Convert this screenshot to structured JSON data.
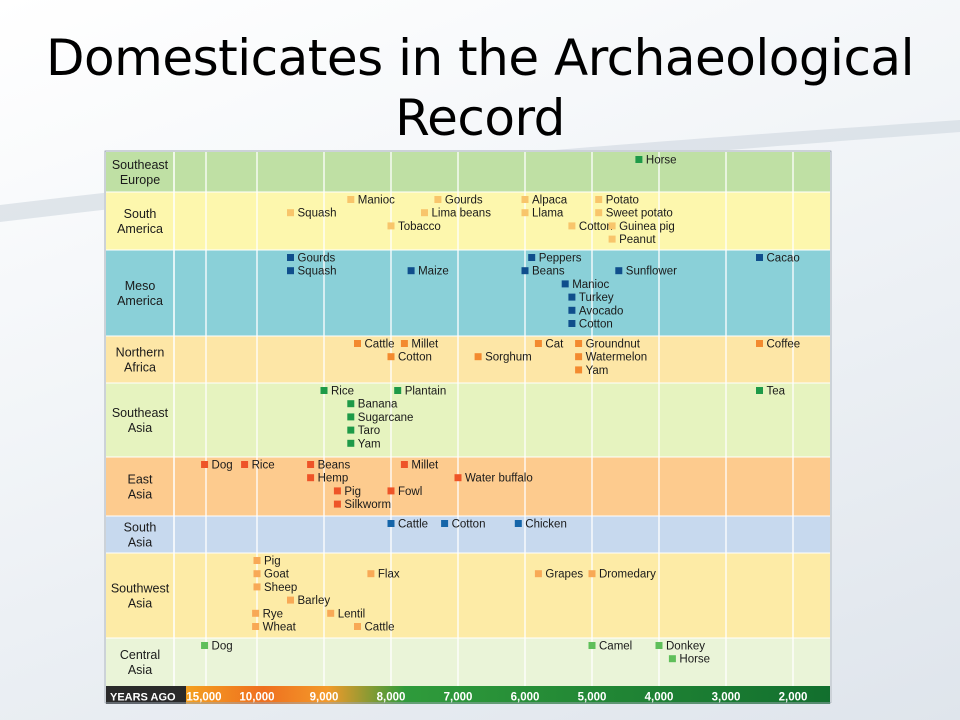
{
  "slide": {
    "title_line1": "Domesticates in the Archaeological",
    "title_line2": "Record"
  },
  "chart_data": {
    "type": "table",
    "title": "Domesticates in the Archaeological Record",
    "xlabel": "YEARS AGO",
    "xlim": [
      15000,
      2000
    ],
    "x_ticks": [
      "15,000",
      "10,000",
      "9,000",
      "8,000",
      "7,000",
      "6,000",
      "5,000",
      "4,000",
      "3,000",
      "2,000"
    ],
    "scale_note": "axis compressed between 15,000 and 10,000 years ago",
    "grid": true,
    "rows": [
      {
        "name_lines": [
          "Southeast",
          "Europe"
        ],
        "band_color": "#bfe0a4",
        "marker_color": "#1e9a48",
        "items": [
          {
            "label": "Horse",
            "years": 4300,
            "line": 0
          }
        ]
      },
      {
        "name_lines": [
          "South",
          "America"
        ],
        "band_color": "#fdf7ad",
        "marker_color": "#f8c56b",
        "items": [
          {
            "label": "Manioc",
            "years": 8600,
            "line": 0
          },
          {
            "label": "Gourds",
            "years": 7300,
            "line": 0
          },
          {
            "label": "Alpaca",
            "years": 6000,
            "line": 0
          },
          {
            "label": "Potato",
            "years": 4900,
            "line": 0
          },
          {
            "label": "Squash",
            "years": 9500,
            "line": 1
          },
          {
            "label": "Lima beans",
            "years": 7500,
            "line": 1
          },
          {
            "label": "Llama",
            "years": 6000,
            "line": 1
          },
          {
            "label": "Sweet potato",
            "years": 4900,
            "line": 1
          },
          {
            "label": "Tobacco",
            "years": 8000,
            "line": 2
          },
          {
            "label": "Cotton",
            "years": 5300,
            "line": 2
          },
          {
            "label": "Guinea pig",
            "years": 4700,
            "line": 2
          },
          {
            "label": "Peanut",
            "years": 4700,
            "line": 3
          }
        ]
      },
      {
        "name_lines": [
          "Meso",
          "America"
        ],
        "band_color": "#8ad0d8",
        "marker_color": "#0f4e8c",
        "items": [
          {
            "label": "Gourds",
            "years": 9500,
            "line": 0
          },
          {
            "label": "Peppers",
            "years": 5900,
            "line": 0
          },
          {
            "label": "Cacao",
            "years": 2500,
            "line": 0
          },
          {
            "label": "Squash",
            "years": 9500,
            "line": 1
          },
          {
            "label": "Maize",
            "years": 7700,
            "line": 1
          },
          {
            "label": "Beans",
            "years": 6000,
            "line": 1
          },
          {
            "label": "Sunflower",
            "years": 4600,
            "line": 1
          },
          {
            "label": "Manioc",
            "years": 5400,
            "line": 2
          },
          {
            "label": "Turkey",
            "years": 5300,
            "line": 3
          },
          {
            "label": "Avocado",
            "years": 5300,
            "line": 4
          },
          {
            "label": "Cotton",
            "years": 5300,
            "line": 5
          }
        ]
      },
      {
        "name_lines": [
          "Northern",
          "Africa"
        ],
        "band_color": "#fde6a6",
        "marker_color": "#f38a2f",
        "items": [
          {
            "label": "Cattle",
            "years": 8500,
            "line": 0
          },
          {
            "label": "Millet",
            "years": 7800,
            "line": 0
          },
          {
            "label": "Cat",
            "years": 5800,
            "line": 0
          },
          {
            "label": "Groundnut",
            "years": 5200,
            "line": 0
          },
          {
            "label": "Coffee",
            "years": 2500,
            "line": 0
          },
          {
            "label": "Cotton",
            "years": 8000,
            "line": 1
          },
          {
            "label": "Sorghum",
            "years": 6700,
            "line": 1
          },
          {
            "label": "Watermelon",
            "years": 5200,
            "line": 1
          },
          {
            "label": "Yam",
            "years": 5200,
            "line": 2
          }
        ]
      },
      {
        "name_lines": [
          "Southeast",
          "Asia"
        ],
        "band_color": "#e6f3bf",
        "marker_color": "#1e9a48",
        "items": [
          {
            "label": "Rice",
            "years": 9000,
            "line": 0
          },
          {
            "label": "Plantain",
            "years": 7900,
            "line": 0
          },
          {
            "label": "Tea",
            "years": 2500,
            "line": 0
          },
          {
            "label": "Banana",
            "years": 8600,
            "line": 1
          },
          {
            "label": "Sugarcane",
            "years": 8600,
            "line": 2
          },
          {
            "label": "Taro",
            "years": 8600,
            "line": 3
          },
          {
            "label": "Yam",
            "years": 8600,
            "line": 4
          }
        ]
      },
      {
        "name_lines": [
          "East",
          "Asia"
        ],
        "band_color": "#fdcb8e",
        "marker_color": "#ee5428",
        "items": [
          {
            "label": "Dog",
            "years": 13800,
            "line": 0
          },
          {
            "label": "Rice",
            "years": 10900,
            "line": 0
          },
          {
            "label": "Beans",
            "years": 9200,
            "line": 0
          },
          {
            "label": "Millet",
            "years": 7800,
            "line": 0
          },
          {
            "label": "Hemp",
            "years": 9200,
            "line": 1
          },
          {
            "label": "Water buffalo",
            "years": 7000,
            "line": 1
          },
          {
            "label": "Pig",
            "years": 8800,
            "line": 2
          },
          {
            "label": "Fowl",
            "years": 8000,
            "line": 2
          },
          {
            "label": "Silkworm",
            "years": 8800,
            "line": 3
          }
        ]
      },
      {
        "name_lines": [
          "South",
          "Asia"
        ],
        "band_color": "#c7d9ee",
        "marker_color": "#1565a9",
        "items": [
          {
            "label": "Cattle",
            "years": 8000,
            "line": 0
          },
          {
            "label": "Cotton",
            "years": 7200,
            "line": 0
          },
          {
            "label": "Chicken",
            "years": 6100,
            "line": 0
          }
        ]
      },
      {
        "name_lines": [
          "Southwest",
          "Asia"
        ],
        "band_color": "#fdeba6",
        "marker_color": "#f8a956",
        "items": [
          {
            "label": "Pig",
            "years": 10000,
            "line": 0
          },
          {
            "label": "Goat",
            "years": 10000,
            "line": 1
          },
          {
            "label": "Flax",
            "years": 8300,
            "line": 1
          },
          {
            "label": "Grapes",
            "years": 5800,
            "line": 1
          },
          {
            "label": "Dromedary",
            "years": 5000,
            "line": 1
          },
          {
            "label": "Sheep",
            "years": 10000,
            "line": 2
          },
          {
            "label": "Barley",
            "years": 9500,
            "line": 3
          },
          {
            "label": "Rye",
            "years": 10100,
            "line": 4
          },
          {
            "label": "Lentil",
            "years": 8900,
            "line": 4
          },
          {
            "label": "Wheat",
            "years": 10100,
            "line": 5
          },
          {
            "label": "Cattle",
            "years": 8500,
            "line": 5
          }
        ]
      },
      {
        "name_lines": [
          "Central",
          "Asia"
        ],
        "band_color": "#eaf4d8",
        "marker_color": "#5fbf5a",
        "items": [
          {
            "label": "Dog",
            "years": 13800,
            "line": 0
          },
          {
            "label": "Camel",
            "years": 5000,
            "line": 0
          },
          {
            "label": "Donkey",
            "years": 4000,
            "line": 0
          },
          {
            "label": "Horse",
            "years": 3800,
            "line": 1
          }
        ]
      }
    ]
  }
}
